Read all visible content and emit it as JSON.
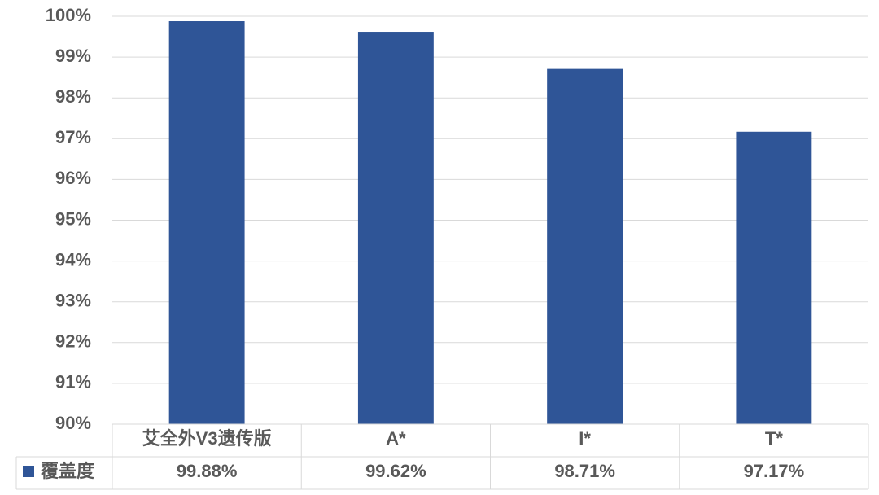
{
  "chart_data": {
    "type": "bar",
    "categories": [
      "艾全外V3遗传版",
      "A*",
      "I*",
      "T*"
    ],
    "series": [
      {
        "name": "覆盖度",
        "color": "#2f5597",
        "values": [
          99.88,
          99.62,
          98.71,
          97.17
        ],
        "value_labels": [
          "99.88%",
          "99.62%",
          "98.71%",
          "97.17%"
        ]
      }
    ],
    "ylim": [
      90,
      100
    ],
    "yticks": [
      {
        "value": 90,
        "label": "90%"
      },
      {
        "value": 91,
        "label": "91%"
      },
      {
        "value": 92,
        "label": "92%"
      },
      {
        "value": 93,
        "label": "93%"
      },
      {
        "value": 94,
        "label": "94%"
      },
      {
        "value": 95,
        "label": "95%"
      },
      {
        "value": 96,
        "label": "96%"
      },
      {
        "value": 97,
        "label": "97%"
      },
      {
        "value": 98,
        "label": "98%"
      },
      {
        "value": 99,
        "label": "99%"
      },
      {
        "value": 100,
        "label": "100%"
      }
    ],
    "grid": true
  }
}
